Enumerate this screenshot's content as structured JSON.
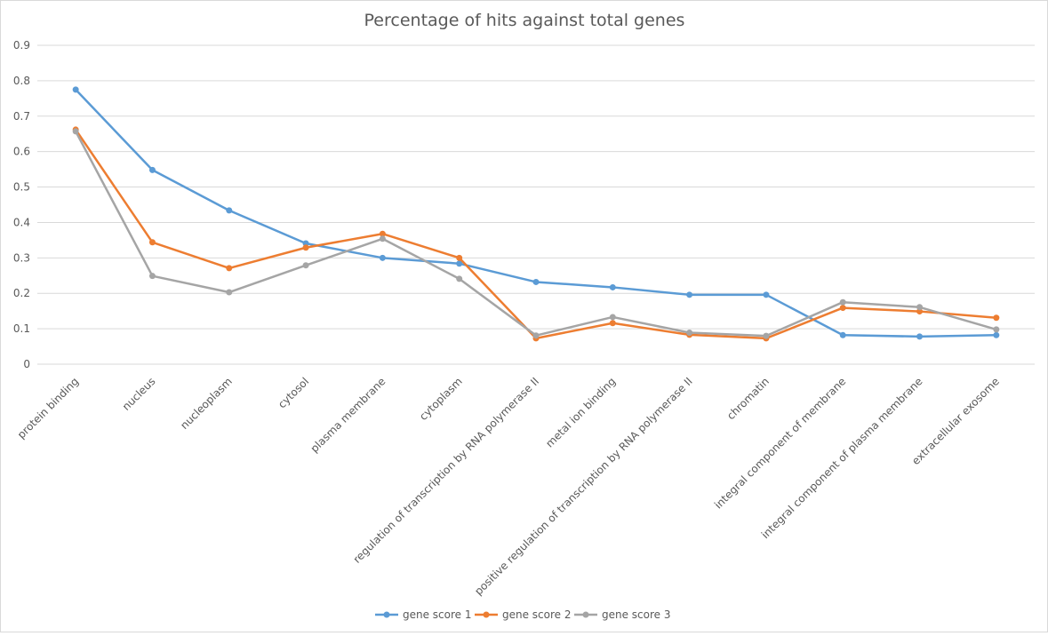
{
  "chart_data": {
    "type": "line",
    "title": "Percentage of hits against total genes",
    "xlabel": "",
    "ylabel": "",
    "ylim": [
      0,
      0.9
    ],
    "yticks": [
      "0",
      "0.1",
      "0.2",
      "0.3",
      "0.4",
      "0.5",
      "0.6",
      "0.7",
      "0.8",
      "0.9"
    ],
    "grid": true,
    "legend_position": "bottom",
    "categories": [
      "protein binding",
      "nucleus",
      "nucleoplasm",
      "cytosol",
      "plasma membrane",
      "cytoplasm",
      "regulation of transcription by RNA polymerase II",
      "metal ion binding",
      "positive regulation of transcription by RNA polymerase II",
      "chromatin",
      "integral component of membrane",
      "integral component of plasma membrane",
      "extracellular exosome"
    ],
    "series": [
      {
        "name": "gene score 1",
        "color": "#5b9bd5",
        "values": [
          0.775,
          0.548,
          0.434,
          0.341,
          0.3,
          0.284,
          0.232,
          0.217,
          0.196,
          0.196,
          0.082,
          0.078,
          0.082
        ]
      },
      {
        "name": "gene score 2",
        "color": "#ed7d31",
        "values": [
          0.662,
          0.344,
          0.271,
          0.329,
          0.368,
          0.3,
          0.073,
          0.116,
          0.083,
          0.073,
          0.159,
          0.149,
          0.131
        ]
      },
      {
        "name": "gene score 3",
        "color": "#a5a5a5",
        "values": [
          0.657,
          0.249,
          0.203,
          0.279,
          0.354,
          0.241,
          0.081,
          0.133,
          0.089,
          0.08,
          0.175,
          0.161,
          0.098
        ]
      }
    ]
  }
}
